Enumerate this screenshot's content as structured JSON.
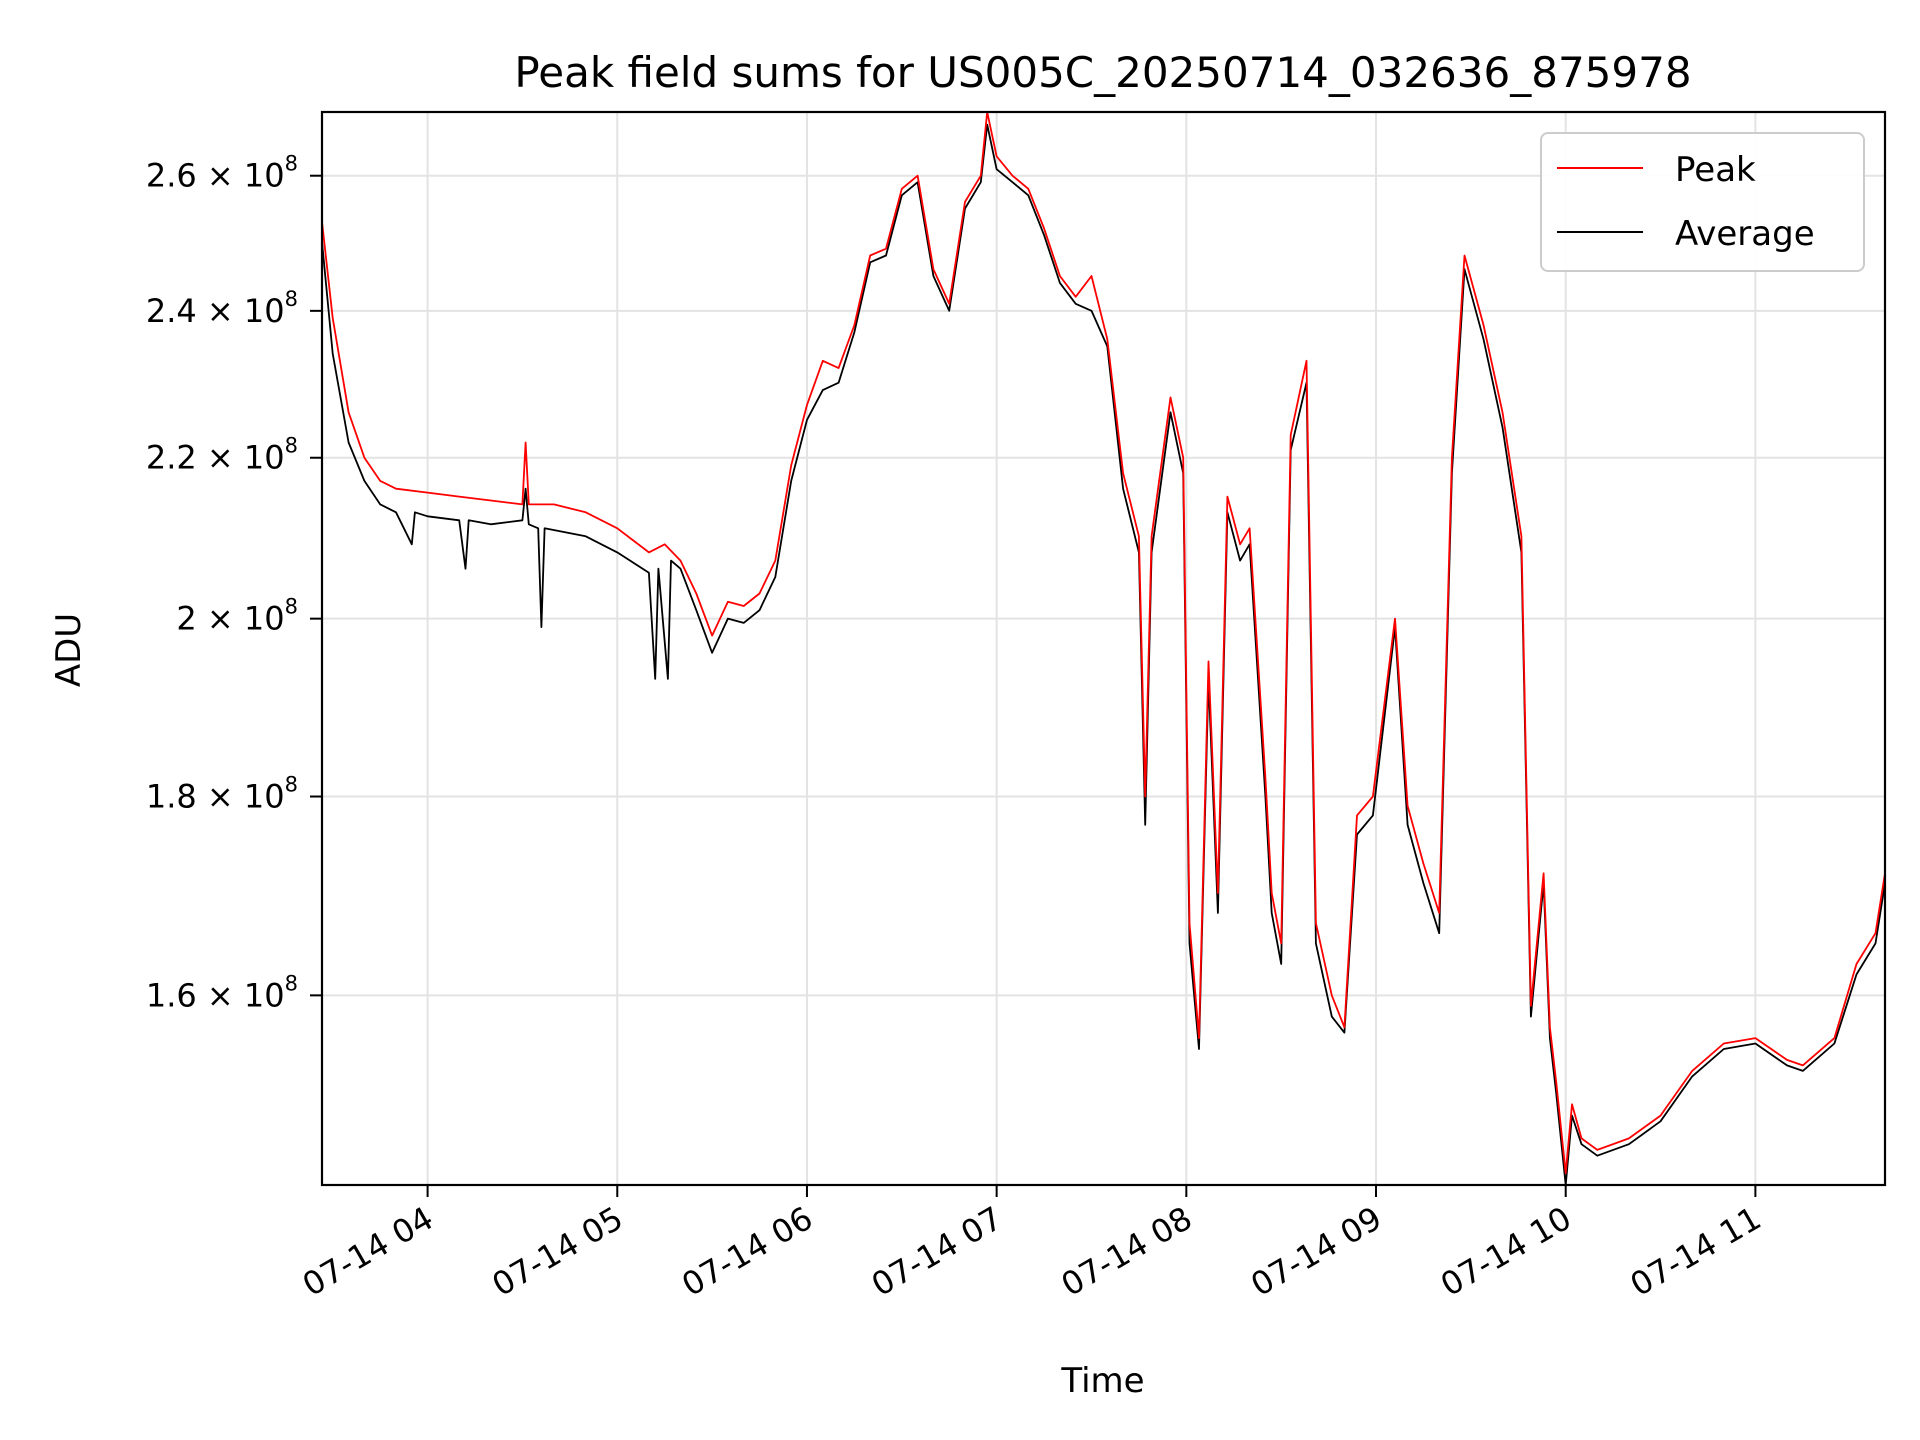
{
  "chart_data": {
    "type": "line",
    "title": "Peak field sums for US005C_20250714_032636_875978",
    "xlabel": "Time",
    "ylabel": "ADU",
    "y_scale": "log",
    "grid": true,
    "legend_position": "top-right",
    "xlim": [
      "2025-07-14T03:26:36",
      "2025-07-14T11:41:00"
    ],
    "ylim": [
      143000000,
      270000000
    ],
    "x_ticks": [
      {
        "value": "2025-07-14T04:00",
        "label": "07-14 04"
      },
      {
        "value": "2025-07-14T05:00",
        "label": "07-14 05"
      },
      {
        "value": "2025-07-14T06:00",
        "label": "07-14 06"
      },
      {
        "value": "2025-07-14T07:00",
        "label": "07-14 07"
      },
      {
        "value": "2025-07-14T08:00",
        "label": "07-14 08"
      },
      {
        "value": "2025-07-14T09:00",
        "label": "07-14 09"
      },
      {
        "value": "2025-07-14T10:00",
        "label": "07-14 10"
      },
      {
        "value": "2025-07-14T11:00",
        "label": "07-14 11"
      }
    ],
    "y_ticks": [
      {
        "value": 160000000,
        "mantissa": "1.6",
        "exponent": "8"
      },
      {
        "value": 180000000,
        "mantissa": "1.8",
        "exponent": "8"
      },
      {
        "value": 200000000,
        "mantissa": "2",
        "exponent": "8"
      },
      {
        "value": 220000000,
        "mantissa": "2.2",
        "exponent": "8"
      },
      {
        "value": 240000000,
        "mantissa": "2.4",
        "exponent": "8"
      },
      {
        "value": 260000000,
        "mantissa": "2.6",
        "exponent": "8"
      }
    ],
    "series": [
      {
        "name": "Peak",
        "color": "#ff0000",
        "points": [
          [
            "2025-07-14T03:26:36",
            253000000.0
          ],
          [
            "2025-07-14T03:30",
            239000000.0
          ],
          [
            "2025-07-14T03:35",
            226000000.0
          ],
          [
            "2025-07-14T03:40",
            220000000.0
          ],
          [
            "2025-07-14T03:45",
            217000000.0
          ],
          [
            "2025-07-14T03:50",
            216000000.0
          ],
          [
            "2025-07-14T04:00",
            215500000.0
          ],
          [
            "2025-07-14T04:10",
            215000000.0
          ],
          [
            "2025-07-14T04:20",
            214500000.0
          ],
          [
            "2025-07-14T04:30",
            214000000.0
          ],
          [
            "2025-07-14T04:31",
            222000000.0
          ],
          [
            "2025-07-14T04:32",
            214000000.0
          ],
          [
            "2025-07-14T04:40",
            214000000.0
          ],
          [
            "2025-07-14T04:50",
            213000000.0
          ],
          [
            "2025-07-14T05:00",
            211000000.0
          ],
          [
            "2025-07-14T05:10",
            208000000.0
          ],
          [
            "2025-07-14T05:15",
            209000000.0
          ],
          [
            "2025-07-14T05:20",
            207000000.0
          ],
          [
            "2025-07-14T05:25",
            203000000.0
          ],
          [
            "2025-07-14T05:30",
            198000000.0
          ],
          [
            "2025-07-14T05:35",
            202000000.0
          ],
          [
            "2025-07-14T05:40",
            201500000.0
          ],
          [
            "2025-07-14T05:45",
            203000000.0
          ],
          [
            "2025-07-14T05:50",
            207000000.0
          ],
          [
            "2025-07-14T05:55",
            219000000.0
          ],
          [
            "2025-07-14T06:00",
            227000000.0
          ],
          [
            "2025-07-14T06:05",
            233000000.0
          ],
          [
            "2025-07-14T06:10",
            232000000.0
          ],
          [
            "2025-07-14T06:15",
            238000000.0
          ],
          [
            "2025-07-14T06:20",
            248000000.0
          ],
          [
            "2025-07-14T06:25",
            249000000.0
          ],
          [
            "2025-07-14T06:30",
            258000000.0
          ],
          [
            "2025-07-14T06:35",
            260000000.0
          ],
          [
            "2025-07-14T06:40",
            246000000.0
          ],
          [
            "2025-07-14T06:45",
            241000000.0
          ],
          [
            "2025-07-14T06:50",
            256000000.0
          ],
          [
            "2025-07-14T06:55",
            260000000.0
          ],
          [
            "2025-07-14T06:57",
            270000000.0
          ],
          [
            "2025-07-14T07:00",
            263000000.0
          ],
          [
            "2025-07-14T07:05",
            260000000.0
          ],
          [
            "2025-07-14T07:10",
            258000000.0
          ],
          [
            "2025-07-14T07:15",
            252000000.0
          ],
          [
            "2025-07-14T07:20",
            245000000.0
          ],
          [
            "2025-07-14T07:25",
            242000000.0
          ],
          [
            "2025-07-14T07:30",
            245000000.0
          ],
          [
            "2025-07-14T07:35",
            236000000.0
          ],
          [
            "2025-07-14T07:40",
            218000000.0
          ],
          [
            "2025-07-14T07:45",
            210000000.0
          ],
          [
            "2025-07-14T07:47",
            180000000.0
          ],
          [
            "2025-07-14T07:49",
            210000000.0
          ],
          [
            "2025-07-14T07:55",
            228000000.0
          ],
          [
            "2025-07-14T07:59",
            220000000.0
          ],
          [
            "2025-07-14T08:01",
            167000000.0
          ],
          [
            "2025-07-14T08:04",
            156000000.0
          ],
          [
            "2025-07-14T08:07",
            195000000.0
          ],
          [
            "2025-07-14T08:10",
            170000000.0
          ],
          [
            "2025-07-14T08:13",
            215000000.0
          ],
          [
            "2025-07-14T08:17",
            209000000.0
          ],
          [
            "2025-07-14T08:20",
            211000000.0
          ],
          [
            "2025-07-14T08:25",
            182000000.0
          ],
          [
            "2025-07-14T08:27",
            170000000.0
          ],
          [
            "2025-07-14T08:30",
            165000000.0
          ],
          [
            "2025-07-14T08:33",
            223000000.0
          ],
          [
            "2025-07-14T08:38",
            233000000.0
          ],
          [
            "2025-07-14T08:41",
            167000000.0
          ],
          [
            "2025-07-14T08:46",
            160000000.0
          ],
          [
            "2025-07-14T08:50",
            157000000.0
          ],
          [
            "2025-07-14T08:54",
            178000000.0
          ],
          [
            "2025-07-14T08:59",
            180000000.0
          ],
          [
            "2025-07-14T09:06",
            200000000.0
          ],
          [
            "2025-07-14T09:10",
            179000000.0
          ],
          [
            "2025-07-14T09:15",
            173000000.0
          ],
          [
            "2025-07-14T09:20",
            168000000.0
          ],
          [
            "2025-07-14T09:24",
            220000000.0
          ],
          [
            "2025-07-14T09:28",
            248000000.0
          ],
          [
            "2025-07-14T09:34",
            238000000.0
          ],
          [
            "2025-07-14T09:40",
            226000000.0
          ],
          [
            "2025-07-14T09:46",
            210000000.0
          ],
          [
            "2025-07-14T09:49",
            159000000.0
          ],
          [
            "2025-07-14T09:53",
            172000000.0
          ],
          [
            "2025-07-14T09:55",
            157000000.0
          ],
          [
            "2025-07-14T09:57",
            152000000.0
          ],
          [
            "2025-07-14T10:00",
            144000000.0
          ],
          [
            "2025-07-14T10:02",
            150000000.0
          ],
          [
            "2025-07-14T10:05",
            147000000.0
          ],
          [
            "2025-07-14T10:10",
            146000000.0
          ],
          [
            "2025-07-14T10:20",
            147000000.0
          ],
          [
            "2025-07-14T10:30",
            149000000.0
          ],
          [
            "2025-07-14T10:40",
            153000000.0
          ],
          [
            "2025-07-14T10:50",
            155500000.0
          ],
          [
            "2025-07-14T11:00",
            156000000.0
          ],
          [
            "2025-07-14T11:10",
            154000000.0
          ],
          [
            "2025-07-14T11:15",
            153500000.0
          ],
          [
            "2025-07-14T11:25",
            156000000.0
          ],
          [
            "2025-07-14T11:32",
            163000000.0
          ],
          [
            "2025-07-14T11:38",
            166000000.0
          ],
          [
            "2025-07-14T11:41",
            172000000.0
          ]
        ]
      },
      {
        "name": "Average",
        "color": "#000000",
        "points": [
          [
            "2025-07-14T03:26:36",
            250000000.0
          ],
          [
            "2025-07-14T03:30",
            234000000.0
          ],
          [
            "2025-07-14T03:35",
            222000000.0
          ],
          [
            "2025-07-14T03:40",
            217000000.0
          ],
          [
            "2025-07-14T03:45",
            214000000.0
          ],
          [
            "2025-07-14T03:50",
            213000000.0
          ],
          [
            "2025-07-14T03:55",
            209000000.0
          ],
          [
            "2025-07-14T03:56",
            213000000.0
          ],
          [
            "2025-07-14T04:00",
            212500000.0
          ],
          [
            "2025-07-14T04:10",
            212000000.0
          ],
          [
            "2025-07-14T04:12",
            206000000.0
          ],
          [
            "2025-07-14T04:13",
            212000000.0
          ],
          [
            "2025-07-14T04:20",
            211500000.0
          ],
          [
            "2025-07-14T04:30",
            212000000.0
          ],
          [
            "2025-07-14T04:31",
            216000000.0
          ],
          [
            "2025-07-14T04:32",
            211500000.0
          ],
          [
            "2025-07-14T04:35",
            211000000.0
          ],
          [
            "2025-07-14T04:36",
            199000000.0
          ],
          [
            "2025-07-14T04:37",
            211000000.0
          ],
          [
            "2025-07-14T04:50",
            210000000.0
          ],
          [
            "2025-07-14T05:00",
            208000000.0
          ],
          [
            "2025-07-14T05:10",
            205500000.0
          ],
          [
            "2025-07-14T05:12",
            193000000.0
          ],
          [
            "2025-07-14T05:13",
            206000000.0
          ],
          [
            "2025-07-14T05:16",
            193000000.0
          ],
          [
            "2025-07-14T05:17",
            207000000.0
          ],
          [
            "2025-07-14T05:20",
            206000000.0
          ],
          [
            "2025-07-14T05:25",
            201000000.0
          ],
          [
            "2025-07-14T05:30",
            196000000.0
          ],
          [
            "2025-07-14T05:35",
            200000000.0
          ],
          [
            "2025-07-14T05:40",
            199500000.0
          ],
          [
            "2025-07-14T05:45",
            201000000.0
          ],
          [
            "2025-07-14T05:50",
            205000000.0
          ],
          [
            "2025-07-14T05:55",
            217000000.0
          ],
          [
            "2025-07-14T06:00",
            225000000.0
          ],
          [
            "2025-07-14T06:05",
            229000000.0
          ],
          [
            "2025-07-14T06:10",
            230000000.0
          ],
          [
            "2025-07-14T06:15",
            237000000.0
          ],
          [
            "2025-07-14T06:20",
            247000000.0
          ],
          [
            "2025-07-14T06:25",
            248000000.0
          ],
          [
            "2025-07-14T06:30",
            257000000.0
          ],
          [
            "2025-07-14T06:35",
            259000000.0
          ],
          [
            "2025-07-14T06:40",
            245000000.0
          ],
          [
            "2025-07-14T06:45",
            240000000.0
          ],
          [
            "2025-07-14T06:50",
            255000000.0
          ],
          [
            "2025-07-14T06:55",
            259000000.0
          ],
          [
            "2025-07-14T06:57",
            268000000.0
          ],
          [
            "2025-07-14T07:00",
            261000000.0
          ],
          [
            "2025-07-14T07:05",
            259000000.0
          ],
          [
            "2025-07-14T07:10",
            257000000.0
          ],
          [
            "2025-07-14T07:15",
            251000000.0
          ],
          [
            "2025-07-14T07:20",
            244000000.0
          ],
          [
            "2025-07-14T07:25",
            241000000.0
          ],
          [
            "2025-07-14T07:30",
            240000000.0
          ],
          [
            "2025-07-14T07:35",
            235000000.0
          ],
          [
            "2025-07-14T07:40",
            216000000.0
          ],
          [
            "2025-07-14T07:45",
            208000000.0
          ],
          [
            "2025-07-14T07:47",
            177000000.0
          ],
          [
            "2025-07-14T07:49",
            208000000.0
          ],
          [
            "2025-07-14T07:55",
            226000000.0
          ],
          [
            "2025-07-14T07:59",
            218000000.0
          ],
          [
            "2025-07-14T08:01",
            165000000.0
          ],
          [
            "2025-07-14T08:04",
            155000000.0
          ],
          [
            "2025-07-14T08:07",
            193000000.0
          ],
          [
            "2025-07-14T08:10",
            168000000.0
          ],
          [
            "2025-07-14T08:13",
            213000000.0
          ],
          [
            "2025-07-14T08:17",
            207000000.0
          ],
          [
            "2025-07-14T08:20",
            209000000.0
          ],
          [
            "2025-07-14T08:25",
            180000000.0
          ],
          [
            "2025-07-14T08:27",
            168000000.0
          ],
          [
            "2025-07-14T08:30",
            163000000.0
          ],
          [
            "2025-07-14T08:33",
            221000000.0
          ],
          [
            "2025-07-14T08:38",
            230000000.0
          ],
          [
            "2025-07-14T08:41",
            165000000.0
          ],
          [
            "2025-07-14T08:46",
            158000000.0
          ],
          [
            "2025-07-14T08:50",
            156500000.0
          ],
          [
            "2025-07-14T08:54",
            176000000.0
          ],
          [
            "2025-07-14T08:59",
            178000000.0
          ],
          [
            "2025-07-14T09:06",
            199000000.0
          ],
          [
            "2025-07-14T09:10",
            177000000.0
          ],
          [
            "2025-07-14T09:15",
            171000000.0
          ],
          [
            "2025-07-14T09:20",
            166000000.0
          ],
          [
            "2025-07-14T09:24",
            218000000.0
          ],
          [
            "2025-07-14T09:28",
            246000000.0
          ],
          [
            "2025-07-14T09:34",
            236000000.0
          ],
          [
            "2025-07-14T09:40",
            224000000.0
          ],
          [
            "2025-07-14T09:46",
            208000000.0
          ],
          [
            "2025-07-14T09:49",
            158000000.0
          ],
          [
            "2025-07-14T09:53",
            171000000.0
          ],
          [
            "2025-07-14T09:55",
            156000000.0
          ],
          [
            "2025-07-14T09:57",
            151000000.0
          ],
          [
            "2025-07-14T10:00",
            143000000.0
          ],
          [
            "2025-07-14T10:02",
            149000000.0
          ],
          [
            "2025-07-14T10:05",
            146500000.0
          ],
          [
            "2025-07-14T10:10",
            145500000.0
          ],
          [
            "2025-07-14T10:20",
            146500000.0
          ],
          [
            "2025-07-14T10:30",
            148500000.0
          ],
          [
            "2025-07-14T10:40",
            152500000.0
          ],
          [
            "2025-07-14T10:50",
            155000000.0
          ],
          [
            "2025-07-14T11:00",
            155500000.0
          ],
          [
            "2025-07-14T11:10",
            153500000.0
          ],
          [
            "2025-07-14T11:15",
            153000000.0
          ],
          [
            "2025-07-14T11:25",
            155500000.0
          ],
          [
            "2025-07-14T11:32",
            162000000.0
          ],
          [
            "2025-07-14T11:38",
            165000000.0
          ],
          [
            "2025-07-14T11:41",
            171000000.0
          ]
        ]
      }
    ]
  }
}
